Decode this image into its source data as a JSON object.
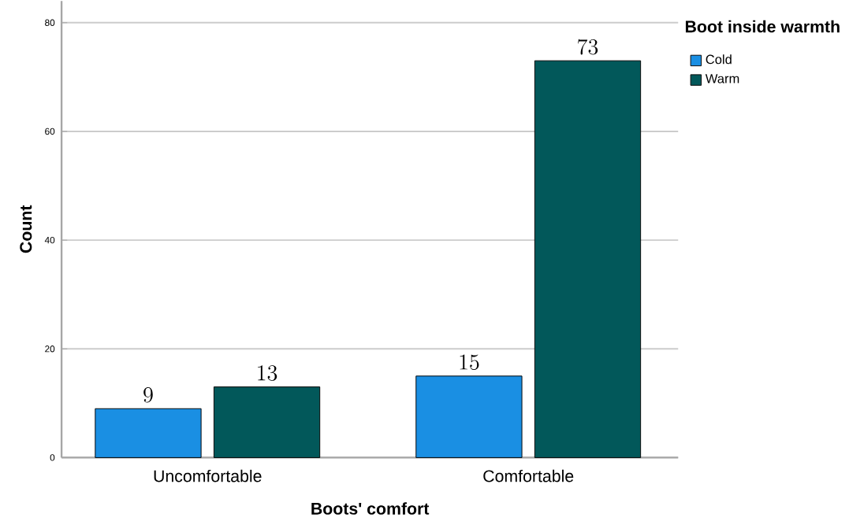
{
  "chart_data": {
    "type": "bar",
    "xlabel": "Boots' comfort",
    "ylabel": "Count",
    "legend_title": "Boot inside warmth",
    "categories": [
      "Uncomfortable",
      "Comfortable"
    ],
    "series": [
      {
        "name": "Cold",
        "color": "#1a8fe3",
        "values": [
          9,
          15
        ]
      },
      {
        "name": "Warm",
        "color": "#02585a",
        "values": [
          13,
          73
        ]
      }
    ],
    "ylim": [
      0,
      84
    ],
    "yticks": [
      0,
      20,
      40,
      60,
      80
    ],
    "grid": "y",
    "legend": "top right",
    "data_labels": true
  }
}
